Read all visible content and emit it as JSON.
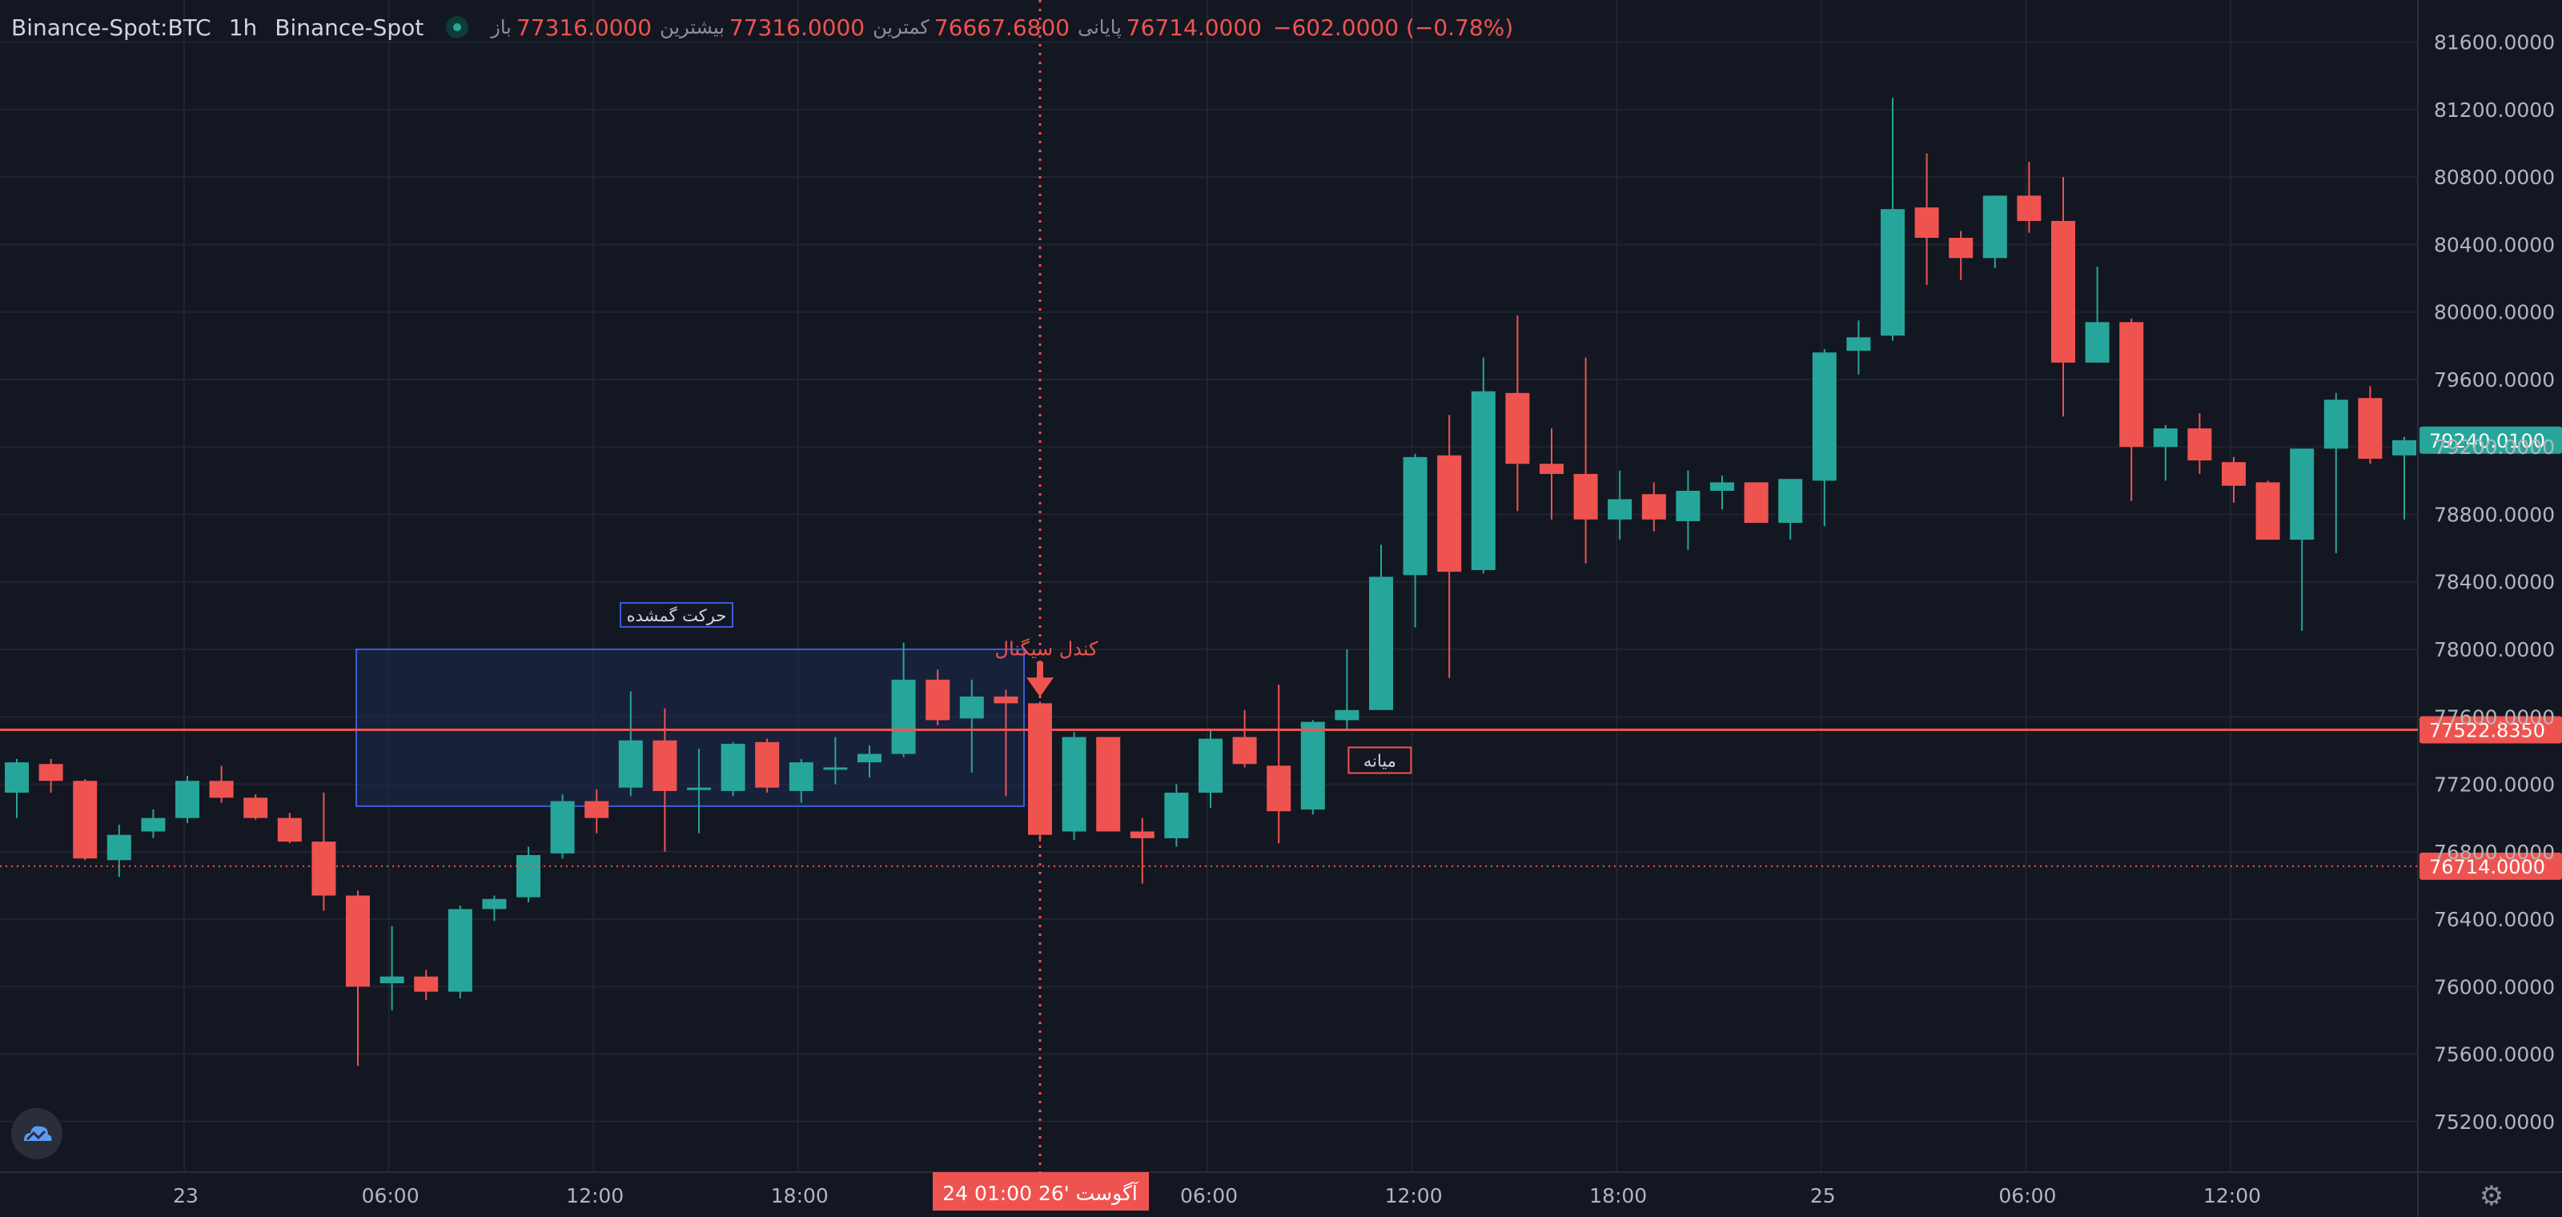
{
  "legend": {
    "symbol": "Binance-Spot:BTC",
    "interval": "1h",
    "exchange": "Binance-Spot",
    "open_label": "باز",
    "open": "77316.0000",
    "high_label": "بیشترین",
    "high": "77316.0000",
    "low_label": "کمترین",
    "low": "76667.6800",
    "close_label": "پایانی",
    "close": "76714.0000",
    "change": "−602.0000 (−0.78%)"
  },
  "colors": {
    "background": "#131722",
    "grid": "#1f2430",
    "up": "#26a69a",
    "down": "#ef5350",
    "box_fill": "#1c2a4f",
    "box_stroke": "#3d5cd8",
    "text": "#d1d4dc",
    "axis_text": "#b2b5be"
  },
  "icons": {
    "logo": "tradingview-cloud-logo",
    "settings": "gear-icon",
    "signal": "arrow-down-icon"
  },
  "chart_data": {
    "type": "candlestick",
    "interval": "1h",
    "ylim": [
      74900,
      81850
    ],
    "y_ticks": [
      "81600.0000",
      "81200.0000",
      "80800.0000",
      "80400.0000",
      "80000.0000",
      "79600.0000",
      "79200.0000",
      "78800.0000",
      "78400.0000",
      "78000.0000",
      "77600.0000",
      "77200.0000",
      "76800.0000",
      "76400.0000",
      "76000.0000",
      "75600.0000",
      "75200.0000"
    ],
    "x_ticks": [
      {
        "index": 5,
        "label": "23"
      },
      {
        "index": 11,
        "label": "06:00"
      },
      {
        "index": 17,
        "label": "12:00"
      },
      {
        "index": 23,
        "label": "18:00"
      },
      {
        "index": 35,
        "label": "06:00"
      },
      {
        "index": 41,
        "label": "12:00"
      },
      {
        "index": 47,
        "label": "18:00"
      },
      {
        "index": 53,
        "label": "25"
      },
      {
        "index": 59,
        "label": "06:00"
      },
      {
        "index": 65,
        "label": "12:00"
      }
    ],
    "crosshair": {
      "index": 30,
      "label": "24 آگوست '26   01:00"
    },
    "candles": [
      [
        77150,
        77350,
        77000,
        77330
      ],
      [
        77320,
        77350,
        77150,
        77220
      ],
      [
        77220,
        77230,
        76750,
        76760
      ],
      [
        76750,
        76960,
        76650,
        76900
      ],
      [
        76920,
        77050,
        76880,
        77000
      ],
      [
        77000,
        77250,
        76970,
        77220
      ],
      [
        77220,
        77310,
        77090,
        77120
      ],
      [
        77120,
        77140,
        76990,
        77000
      ],
      [
        77000,
        77030,
        76850,
        76860
      ],
      [
        76860,
        77150,
        76450,
        76540
      ],
      [
        76540,
        76570,
        75530,
        76000
      ],
      [
        76020,
        76360,
        75860,
        76060
      ],
      [
        76060,
        76100,
        75920,
        75970
      ],
      [
        75970,
        76480,
        75930,
        76460
      ],
      [
        76460,
        76540,
        76390,
        76520
      ],
      [
        76530,
        76830,
        76500,
        76780
      ],
      [
        76790,
        77140,
        76760,
        77100
      ],
      [
        77100,
        77170,
        76910,
        77000
      ],
      [
        77180,
        77750,
        77130,
        77460
      ],
      [
        77460,
        77650,
        76800,
        77160
      ],
      [
        77180,
        77410,
        76910,
        77180
      ],
      [
        77160,
        77450,
        77130,
        77440
      ],
      [
        77450,
        77470,
        77150,
        77180
      ],
      [
        77160,
        77350,
        77090,
        77330
      ],
      [
        77300,
        77480,
        77200,
        77300
      ],
      [
        77330,
        77430,
        77240,
        77380
      ],
      [
        77380,
        78040,
        77360,
        77820
      ],
      [
        77820,
        77880,
        77550,
        77580
      ],
      [
        77590,
        77820,
        77270,
        77720
      ],
      [
        77720,
        77760,
        77130,
        77680
      ],
      [
        77680,
        77690,
        76860,
        76900
      ],
      [
        76920,
        77510,
        76870,
        77480
      ],
      [
        77480,
        77480,
        76920,
        76920
      ],
      [
        76920,
        77000,
        76610,
        76880
      ],
      [
        76880,
        77200,
        76830,
        77150
      ],
      [
        77150,
        77530,
        77060,
        77470
      ],
      [
        77480,
        77640,
        77300,
        77320
      ],
      [
        77310,
        77790,
        76850,
        77040
      ],
      [
        77050,
        77580,
        77020,
        77570
      ],
      [
        77580,
        78000,
        77530,
        77640
      ],
      [
        77640,
        78620,
        77640,
        78430
      ],
      [
        78440,
        79160,
        78130,
        79140
      ],
      [
        79150,
        79390,
        77830,
        78460
      ],
      [
        78470,
        79730,
        78450,
        79530
      ],
      [
        79520,
        79980,
        78820,
        79100
      ],
      [
        79100,
        79310,
        78770,
        79040
      ],
      [
        79040,
        79730,
        78510,
        78770
      ],
      [
        78770,
        79060,
        78650,
        78890
      ],
      [
        78920,
        78990,
        78700,
        78770
      ],
      [
        78760,
        79060,
        78590,
        78940
      ],
      [
        78940,
        79030,
        78830,
        78990
      ],
      [
        78990,
        78990,
        78750,
        78750
      ],
      [
        78750,
        79000,
        78650,
        79010
      ],
      [
        79000,
        79780,
        78730,
        79760
      ],
      [
        79770,
        79950,
        79630,
        79850
      ],
      [
        79860,
        81270,
        79830,
        80610
      ],
      [
        80620,
        80940,
        80160,
        80440
      ],
      [
        80440,
        80480,
        80190,
        80320
      ],
      [
        80320,
        80690,
        80260,
        80690
      ],
      [
        80690,
        80890,
        80470,
        80540
      ],
      [
        80540,
        80800,
        79380,
        79700
      ],
      [
        79700,
        80270,
        79700,
        79940
      ],
      [
        79940,
        79960,
        78880,
        79200
      ],
      [
        79200,
        79330,
        79000,
        79310
      ],
      [
        79310,
        79400,
        79040,
        79120
      ],
      [
        79110,
        79140,
        78870,
        78970
      ],
      [
        78990,
        79000,
        78650,
        78650
      ],
      [
        78650,
        79140,
        78110,
        79190
      ],
      [
        79190,
        79520,
        78570,
        79480
      ],
      [
        79490,
        79560,
        79100,
        79130
      ],
      [
        79150,
        79260,
        78770,
        79240
      ]
    ],
    "series_dots": [
      {
        "name": "green",
        "indices": [
          0,
          3,
          4,
          5,
          11,
          13,
          14,
          15,
          16,
          18,
          21,
          23,
          24,
          25,
          26,
          28,
          31,
          34,
          35,
          38,
          39,
          40,
          41,
          43,
          47,
          49,
          50,
          52,
          53,
          54,
          55,
          58,
          61,
          63,
          67,
          68,
          70
        ]
      },
      {
        "name": "red",
        "indices": [
          1,
          2,
          6,
          7,
          8,
          9,
          10,
          12,
          17,
          19,
          20,
          22,
          27,
          29,
          30,
          32,
          33,
          36,
          37,
          42,
          44,
          45,
          46,
          48,
          51,
          56,
          57,
          59,
          60,
          62,
          64,
          65,
          66,
          69
        ]
      }
    ],
    "price_lines": [
      {
        "price": 77522.835,
        "label": "77522.8350",
        "style": "solid"
      },
      {
        "price": 76714.0,
        "label": "76714.0000",
        "style": "dotted"
      },
      {
        "price": 79240.01,
        "label": "79240.0100",
        "style": "badge"
      }
    ],
    "range_box": {
      "from_index": 10,
      "to_index": 30,
      "top": 78000,
      "bottom": 77070,
      "title": "حرکت گمشده"
    },
    "midline_label": "میانه",
    "signal": {
      "index": 30,
      "label": "کندل سیگنال"
    }
  }
}
